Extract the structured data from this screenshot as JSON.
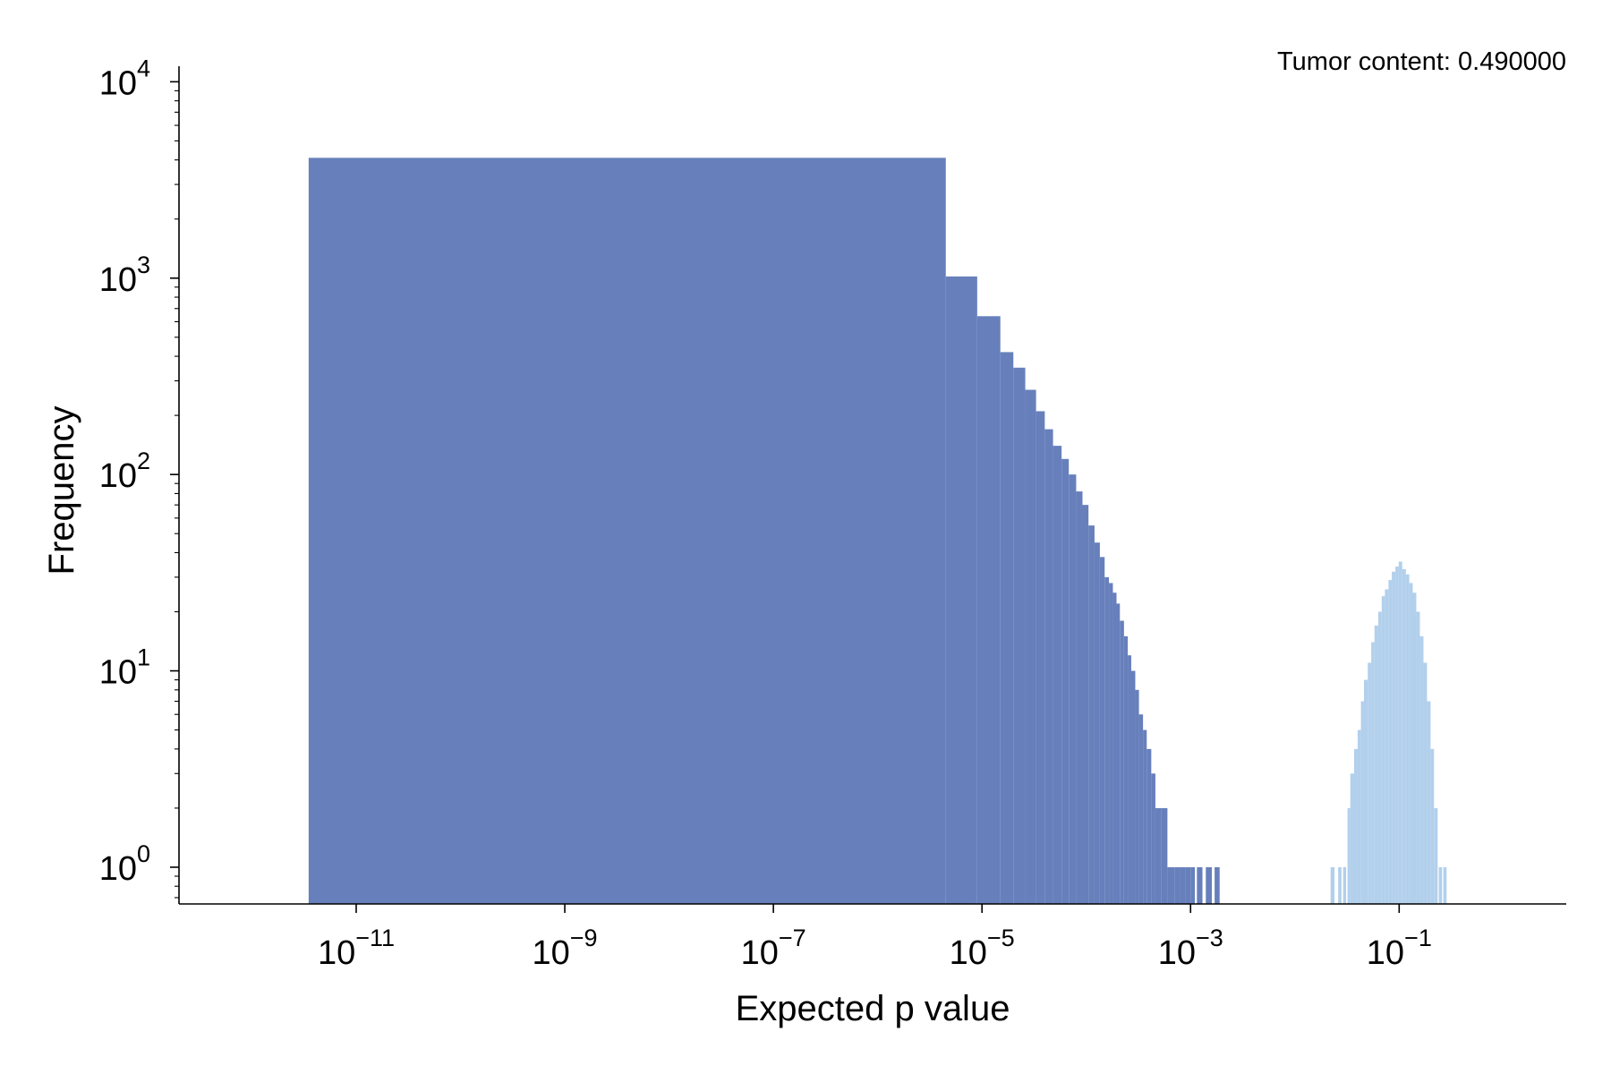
{
  "chart_data": {
    "type": "bar",
    "title": "",
    "annotation": "Tumor content: 0.490000",
    "xlabel": "Expected p value",
    "ylabel": "Frequency",
    "x_scale": "log",
    "y_scale": "log",
    "xlim": [
      2e-13,
      4
    ],
    "ylim": [
      0.65,
      12000
    ],
    "x_ticks": [
      1e-11,
      1e-09,
      1e-07,
      1e-05,
      0.001,
      0.1
    ],
    "x_tick_labels": [
      {
        "base": "10",
        "exp": "−11"
      },
      {
        "base": "10",
        "exp": "−9"
      },
      {
        "base": "10",
        "exp": "−7"
      },
      {
        "base": "10",
        "exp": "−5"
      },
      {
        "base": "10",
        "exp": "−3"
      },
      {
        "base": "10",
        "exp": "−1"
      }
    ],
    "y_ticks": [
      1,
      10,
      100,
      1000,
      10000
    ],
    "y_tick_labels": [
      {
        "base": "10",
        "exp": "0"
      },
      {
        "base": "10",
        "exp": "1"
      },
      {
        "base": "10",
        "exp": "2"
      },
      {
        "base": "10",
        "exp": "3"
      },
      {
        "base": "10",
        "exp": "4"
      }
    ],
    "grid": false,
    "series": [
      {
        "color": "#6780bc",
        "bins": [
          [
            3.5e-12,
            4.5e-06,
            4100
          ],
          [
            4.5e-06,
            9e-06,
            1020
          ],
          [
            9e-06,
            1.5e-05,
            640
          ],
          [
            1.5e-05,
            2e-05,
            420
          ],
          [
            2e-05,
            2.6e-05,
            350
          ],
          [
            2.6e-05,
            3.3e-05,
            270
          ],
          [
            3.3e-05,
            4e-05,
            210
          ],
          [
            4e-05,
            4.8e-05,
            170
          ],
          [
            4.8e-05,
            5.8e-05,
            140
          ],
          [
            5.8e-05,
            6.8e-05,
            120
          ],
          [
            6.8e-05,
            8e-05,
            100
          ],
          [
            8e-05,
            9.2e-05,
            82
          ],
          [
            9.2e-05,
            0.000105,
            70
          ],
          [
            0.000105,
            0.00012,
            55
          ],
          [
            0.00012,
            0.000135,
            45
          ],
          [
            0.000135,
            0.00015,
            38
          ],
          [
            0.00015,
            0.000165,
            30
          ],
          [
            0.000165,
            0.00018,
            28
          ],
          [
            0.00018,
            0.000195,
            25
          ],
          [
            0.000195,
            0.00021,
            22
          ],
          [
            0.00021,
            0.00023,
            18
          ],
          [
            0.00023,
            0.00025,
            15
          ],
          [
            0.00025,
            0.00027,
            12
          ],
          [
            0.00027,
            0.000295,
            10
          ],
          [
            0.000295,
            0.00032,
            8
          ],
          [
            0.00032,
            0.00035,
            6
          ],
          [
            0.00035,
            0.00038,
            5
          ],
          [
            0.00038,
            0.00042,
            4
          ],
          [
            0.00042,
            0.00046,
            3
          ],
          [
            0.00046,
            0.00052,
            2
          ],
          [
            0.00052,
            0.0006,
            2
          ],
          [
            0.0006,
            0.0007,
            1
          ],
          [
            0.0007,
            0.0008,
            1
          ],
          [
            0.0008,
            0.0009,
            1
          ],
          [
            0.0009,
            0.001,
            1
          ],
          [
            0.001,
            0.0011,
            1
          ],
          [
            0.00115,
            0.0013,
            1
          ],
          [
            0.0014,
            0.0016,
            1
          ],
          [
            0.0017,
            0.0019,
            1
          ]
        ]
      },
      {
        "color": "#b2d0ec",
        "bins": [
          [
            0.022,
            0.024,
            1
          ],
          [
            0.026,
            0.028,
            1
          ],
          [
            0.029,
            0.031,
            1
          ],
          [
            0.032,
            0.034,
            2
          ],
          [
            0.034,
            0.037,
            3
          ],
          [
            0.037,
            0.04,
            4
          ],
          [
            0.04,
            0.043,
            5
          ],
          [
            0.043,
            0.046,
            7
          ],
          [
            0.046,
            0.05,
            9
          ],
          [
            0.05,
            0.054,
            11
          ],
          [
            0.054,
            0.058,
            14
          ],
          [
            0.058,
            0.063,
            17
          ],
          [
            0.063,
            0.068,
            20
          ],
          [
            0.068,
            0.073,
            24
          ],
          [
            0.073,
            0.079,
            26
          ],
          [
            0.079,
            0.085,
            29
          ],
          [
            0.085,
            0.092,
            32
          ],
          [
            0.092,
            0.099,
            34
          ],
          [
            0.099,
            0.107,
            36
          ],
          [
            0.107,
            0.116,
            33
          ],
          [
            0.116,
            0.125,
            31
          ],
          [
            0.125,
            0.135,
            28
          ],
          [
            0.135,
            0.146,
            25
          ],
          [
            0.146,
            0.158,
            20
          ],
          [
            0.158,
            0.171,
            15
          ],
          [
            0.171,
            0.185,
            11
          ],
          [
            0.185,
            0.2,
            7
          ],
          [
            0.2,
            0.216,
            4
          ],
          [
            0.216,
            0.234,
            2
          ],
          [
            0.24,
            0.258,
            1
          ],
          [
            0.265,
            0.285,
            1
          ]
        ]
      }
    ]
  }
}
